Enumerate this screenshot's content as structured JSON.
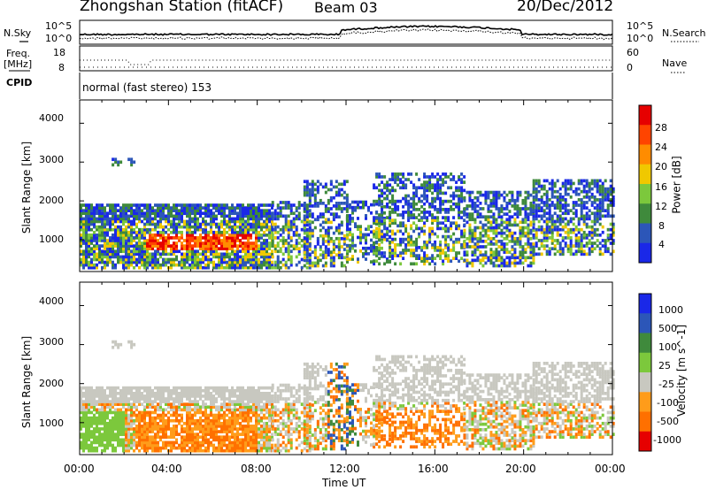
{
  "header": {
    "station": "Zhongshan Station (fitACF)",
    "beam": "Beam 03",
    "date": "20/Dec/2012"
  },
  "cpid": {
    "label": "CPID",
    "text": "normal (fast stereo) 153"
  },
  "noise_panel": {
    "left_label": "N.Sky",
    "right_label": "N.Search",
    "left_ticks": [
      "10^5",
      "10^0"
    ],
    "right_ticks": [
      "10^5",
      "10^0"
    ]
  },
  "freq_panel": {
    "left_label_top": "Freq.",
    "left_label_bottom": "[MHz]",
    "right_label": "Nave",
    "left_ticks": [
      "18",
      "8"
    ],
    "right_ticks": [
      "60",
      "0"
    ]
  },
  "chart_data": [
    {
      "type": "heatmap",
      "name": "power",
      "ylabel": "Slant Range [km]",
      "ylim": [
        180,
        4600
      ],
      "yticks": [
        "1000",
        "2000",
        "3000",
        "4000"
      ],
      "colorbar_label": "Power [dB]",
      "colorbar_ticks": [
        "4",
        "8",
        "12",
        "16",
        "20",
        "24",
        "28"
      ],
      "colors": [
        "#1a28e8",
        "#2c56b8",
        "#3f8a3c",
        "#7cc83c",
        "#f0c800",
        "#ff8c00",
        "#ff4400",
        "#e60000"
      ]
    },
    {
      "type": "heatmap",
      "name": "velocity",
      "ylabel": "Slant Range [km]",
      "ylim": [
        180,
        4600
      ],
      "yticks": [
        "1000",
        "2000",
        "3000",
        "4000"
      ],
      "colorbar_label": "Velocity [m s^-1]",
      "colorbar_ticks": [
        "1000",
        "500",
        "100",
        "25",
        "-25",
        "-100",
        "-500",
        "-1000"
      ],
      "colors": [
        "#1a28e8",
        "#2c56b8",
        "#3f8a3c",
        "#7cc83c",
        "#c8c8c0",
        "#ff9c1a",
        "#ff7000",
        "#e60000"
      ]
    }
  ],
  "time_axis": {
    "label": "Time UT",
    "ticks": [
      "00:00",
      "04:00",
      "08:00",
      "12:00",
      "16:00",
      "20:00",
      "00:00"
    ]
  }
}
